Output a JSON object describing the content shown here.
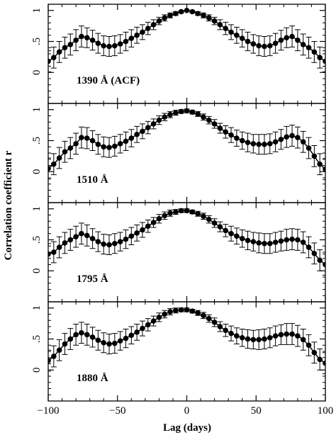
{
  "chart_data": {
    "type": "scatter",
    "xlabel": "Lag (days)",
    "ylabel": "Correlation coefficient r",
    "xlim": [
      -100,
      100
    ],
    "ylim": [
      -0.5,
      1.1
    ],
    "x_ticks": [
      -100,
      -50,
      0,
      50,
      100
    ],
    "x_tick_labels": [
      "−100",
      "−50",
      "0",
      "50",
      "100"
    ],
    "y_ticks": [
      0,
      0.5,
      1
    ],
    "y_tick_labels": [
      "0",
      ".5",
      "1"
    ],
    "grid": false,
    "panels": [
      {
        "label": "1390 Å (ACF)",
        "x": [
          -100,
          -96,
          -92,
          -88,
          -84,
          -80,
          -76,
          -72,
          -68,
          -64,
          -60,
          -56,
          -52,
          -48,
          -44,
          -40,
          -36,
          -32,
          -28,
          -24,
          -20,
          -16,
          -12,
          -8,
          -4,
          0,
          4,
          8,
          12,
          16,
          20,
          24,
          28,
          32,
          36,
          40,
          44,
          48,
          52,
          56,
          60,
          64,
          68,
          72,
          76,
          80,
          84,
          88,
          92,
          96,
          100
        ],
        "values": [
          0.18,
          0.24,
          0.33,
          0.4,
          0.45,
          0.52,
          0.58,
          0.56,
          0.52,
          0.47,
          0.43,
          0.42,
          0.43,
          0.46,
          0.5,
          0.55,
          0.6,
          0.65,
          0.71,
          0.77,
          0.83,
          0.88,
          0.92,
          0.95,
          0.98,
          1.0,
          0.98,
          0.95,
          0.92,
          0.88,
          0.83,
          0.77,
          0.71,
          0.65,
          0.6,
          0.55,
          0.5,
          0.46,
          0.43,
          0.42,
          0.43,
          0.47,
          0.52,
          0.56,
          0.58,
          0.52,
          0.45,
          0.4,
          0.33,
          0.24,
          0.18
        ],
        "errors": [
          0.17,
          0.17,
          0.17,
          0.17,
          0.17,
          0.17,
          0.17,
          0.16,
          0.16,
          0.16,
          0.16,
          0.16,
          0.16,
          0.15,
          0.15,
          0.14,
          0.13,
          0.12,
          0.1,
          0.08,
          0.06,
          0.05,
          0.04,
          0.03,
          0.02,
          0.0,
          0.02,
          0.03,
          0.04,
          0.05,
          0.06,
          0.08,
          0.1,
          0.12,
          0.13,
          0.14,
          0.15,
          0.15,
          0.16,
          0.16,
          0.16,
          0.16,
          0.16,
          0.16,
          0.17,
          0.17,
          0.17,
          0.17,
          0.17,
          0.17,
          0.17
        ]
      },
      {
        "label": "1510 Å",
        "x": [
          -100,
          -96,
          -92,
          -88,
          -84,
          -80,
          -76,
          -72,
          -68,
          -64,
          -60,
          -56,
          -52,
          -48,
          -44,
          -40,
          -36,
          -32,
          -28,
          -24,
          -20,
          -16,
          -12,
          -8,
          -4,
          0,
          4,
          8,
          12,
          16,
          20,
          24,
          28,
          32,
          36,
          40,
          44,
          48,
          52,
          56,
          60,
          64,
          68,
          72,
          76,
          80,
          84,
          88,
          92,
          96,
          100
        ],
        "values": [
          0.05,
          0.12,
          0.22,
          0.32,
          0.38,
          0.45,
          0.55,
          0.54,
          0.5,
          0.44,
          0.4,
          0.39,
          0.41,
          0.45,
          0.49,
          0.54,
          0.6,
          0.65,
          0.71,
          0.77,
          0.83,
          0.88,
          0.92,
          0.95,
          0.97,
          0.98,
          0.96,
          0.93,
          0.88,
          0.83,
          0.77,
          0.7,
          0.64,
          0.59,
          0.54,
          0.5,
          0.47,
          0.45,
          0.44,
          0.44,
          0.45,
          0.48,
          0.52,
          0.56,
          0.58,
          0.55,
          0.48,
          0.38,
          0.25,
          0.12,
          0.04
        ],
        "errors": [
          0.17,
          0.17,
          0.17,
          0.17,
          0.17,
          0.17,
          0.17,
          0.17,
          0.16,
          0.16,
          0.16,
          0.16,
          0.16,
          0.15,
          0.15,
          0.14,
          0.13,
          0.12,
          0.1,
          0.08,
          0.07,
          0.06,
          0.05,
          0.04,
          0.03,
          0.03,
          0.03,
          0.04,
          0.05,
          0.06,
          0.07,
          0.08,
          0.1,
          0.12,
          0.13,
          0.14,
          0.15,
          0.15,
          0.16,
          0.16,
          0.16,
          0.16,
          0.16,
          0.17,
          0.17,
          0.17,
          0.17,
          0.17,
          0.17,
          0.17,
          0.17
        ]
      },
      {
        "label": "1795 Å",
        "x": [
          -100,
          -96,
          -92,
          -88,
          -84,
          -80,
          -76,
          -72,
          -68,
          -64,
          -60,
          -56,
          -52,
          -48,
          -44,
          -40,
          -36,
          -32,
          -28,
          -24,
          -20,
          -16,
          -12,
          -8,
          -4,
          0,
          4,
          8,
          12,
          16,
          20,
          24,
          28,
          32,
          36,
          40,
          44,
          48,
          52,
          56,
          60,
          64,
          68,
          72,
          76,
          80,
          84,
          88,
          92,
          96,
          100
        ],
        "values": [
          0.27,
          0.3,
          0.38,
          0.45,
          0.5,
          0.55,
          0.6,
          0.57,
          0.52,
          0.47,
          0.43,
          0.42,
          0.44,
          0.47,
          0.51,
          0.56,
          0.61,
          0.66,
          0.72,
          0.78,
          0.84,
          0.89,
          0.93,
          0.95,
          0.97,
          0.97,
          0.95,
          0.92,
          0.88,
          0.83,
          0.77,
          0.71,
          0.65,
          0.6,
          0.56,
          0.52,
          0.49,
          0.47,
          0.45,
          0.44,
          0.44,
          0.46,
          0.48,
          0.5,
          0.51,
          0.5,
          0.46,
          0.38,
          0.28,
          0.17,
          0.1
        ],
        "errors": [
          0.17,
          0.17,
          0.17,
          0.17,
          0.17,
          0.17,
          0.17,
          0.17,
          0.16,
          0.16,
          0.16,
          0.16,
          0.16,
          0.15,
          0.15,
          0.14,
          0.13,
          0.12,
          0.1,
          0.08,
          0.07,
          0.06,
          0.05,
          0.04,
          0.03,
          0.03,
          0.03,
          0.04,
          0.05,
          0.06,
          0.07,
          0.08,
          0.1,
          0.12,
          0.13,
          0.14,
          0.15,
          0.15,
          0.16,
          0.16,
          0.16,
          0.16,
          0.16,
          0.17,
          0.17,
          0.17,
          0.17,
          0.17,
          0.17,
          0.17,
          0.17
        ]
      },
      {
        "label": "1880 Å",
        "x": [
          -100,
          -96,
          -92,
          -88,
          -84,
          -80,
          -76,
          -72,
          -68,
          -64,
          -60,
          -56,
          -52,
          -48,
          -44,
          -40,
          -36,
          -32,
          -28,
          -24,
          -20,
          -16,
          -12,
          -8,
          -4,
          0,
          4,
          8,
          12,
          16,
          20,
          24,
          28,
          32,
          36,
          40,
          44,
          48,
          52,
          56,
          60,
          64,
          68,
          72,
          76,
          80,
          84,
          88,
          92,
          96,
          100
        ],
        "values": [
          0.15,
          0.22,
          0.32,
          0.42,
          0.5,
          0.57,
          0.6,
          0.57,
          0.53,
          0.48,
          0.44,
          0.42,
          0.43,
          0.47,
          0.51,
          0.56,
          0.61,
          0.67,
          0.73,
          0.79,
          0.85,
          0.9,
          0.94,
          0.96,
          0.97,
          0.97,
          0.95,
          0.92,
          0.88,
          0.83,
          0.77,
          0.7,
          0.64,
          0.59,
          0.55,
          0.52,
          0.5,
          0.49,
          0.49,
          0.5,
          0.52,
          0.55,
          0.57,
          0.58,
          0.58,
          0.55,
          0.49,
          0.4,
          0.28,
          0.17,
          0.11
        ],
        "errors": [
          0.17,
          0.17,
          0.17,
          0.17,
          0.17,
          0.17,
          0.17,
          0.17,
          0.16,
          0.16,
          0.16,
          0.16,
          0.16,
          0.15,
          0.15,
          0.14,
          0.13,
          0.12,
          0.1,
          0.08,
          0.07,
          0.06,
          0.05,
          0.04,
          0.03,
          0.03,
          0.03,
          0.04,
          0.05,
          0.06,
          0.07,
          0.08,
          0.1,
          0.12,
          0.13,
          0.14,
          0.15,
          0.15,
          0.16,
          0.16,
          0.16,
          0.16,
          0.16,
          0.17,
          0.17,
          0.17,
          0.17,
          0.17,
          0.17,
          0.17,
          0.17
        ]
      }
    ]
  }
}
